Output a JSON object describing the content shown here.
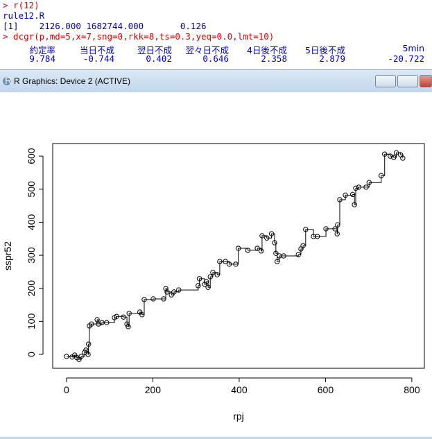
{
  "console": {
    "lines": [
      {
        "text": "> r(12)",
        "color": "#e00000"
      },
      {
        "text": "rule12.R",
        "color": "#0000c0"
      },
      {
        "text": "[1]    2126.000 1682744.000       0.126",
        "color": "#0000c0"
      },
      {
        "text": "> dcgr(p,md=5,x=7,sng=0,rkk=8,ts=0.3,yeq=0.0,lmt=10)",
        "color": "#e00000"
      }
    ],
    "table": {
      "headers": [
        "約定率",
        "当日不成",
        "翌日不成",
        "翌々日不成",
        "4日後不成",
        "5日後不成",
        "5min"
      ],
      "row": [
        "9.784",
        "-0.744",
        "0.402",
        "0.646",
        "2.358",
        "2.879",
        "-20.722"
      ]
    }
  },
  "window": {
    "title": "R Graphics: Device 2 (ACTIVE)"
  },
  "chart_data": {
    "type": "line",
    "step": true,
    "markers": "circle",
    "color": "#000000",
    "x_label": "rpj",
    "y_label": "sspr52",
    "x": [
      0,
      13,
      19,
      24,
      29,
      34,
      42,
      45,
      50,
      51,
      53,
      58,
      71,
      74,
      82,
      93,
      111,
      116,
      132,
      140,
      143,
      145,
      170,
      175,
      180,
      201,
      225,
      230,
      233,
      243,
      249,
      260,
      305,
      308,
      320,
      324,
      328,
      333,
      339,
      349,
      355,
      368,
      377,
      392,
      398,
      420,
      442,
      451,
      453,
      464,
      475,
      482,
      485,
      488,
      493,
      503,
      537,
      543,
      548,
      554,
      572,
      581,
      601,
      622,
      627,
      628,
      633,
      646,
      663,
      667,
      670,
      677,
      694,
      701,
      729,
      737,
      750,
      758,
      764,
      774,
      779
    ],
    "values": [
      -6,
      -8,
      -2,
      -10,
      -15,
      -6,
      6,
      13,
      0,
      31,
      86,
      92,
      105,
      92,
      96,
      96,
      111,
      115,
      113,
      92,
      84,
      124,
      128,
      120,
      166,
      168,
      168,
      199,
      189,
      180,
      189,
      195,
      208,
      229,
      212,
      220,
      203,
      235,
      248,
      241,
      281,
      281,
      273,
      273,
      321,
      315,
      321,
      313,
      359,
      352,
      365,
      338,
      306,
      281,
      298,
      298,
      302,
      319,
      329,
      378,
      357,
      357,
      380,
      380,
      365,
      392,
      468,
      482,
      484,
      453,
      503,
      506,
      506,
      520,
      541,
      606,
      600,
      596,
      610,
      604,
      594
    ],
    "xlim": [
      -32,
      829
    ],
    "ylim": [
      -42,
      638
    ],
    "xticks": [
      0,
      200,
      400,
      600,
      800
    ],
    "yticks": [
      0,
      100,
      200,
      300,
      400,
      500,
      600
    ]
  }
}
